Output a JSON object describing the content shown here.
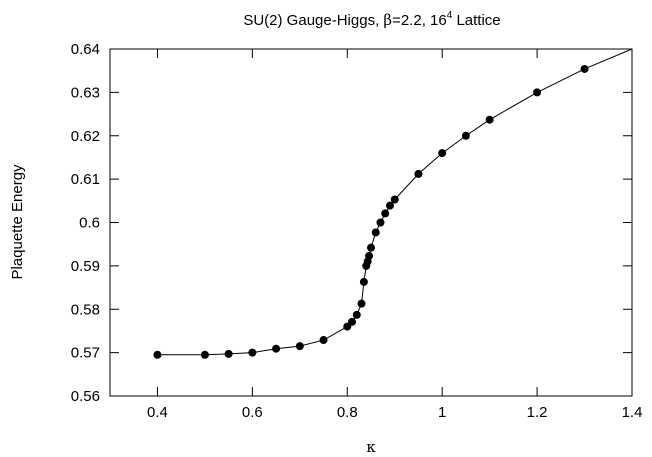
{
  "chart_data": {
    "type": "line",
    "title": {
      "prefix": "SU(2) Gauge-Higgs, ",
      "beta_symbol": "β",
      "beta_value": "=2.2, 16",
      "superscript": "4",
      "suffix": " Lattice"
    },
    "xlabel": "κ",
    "ylabel": "Plaquette Energy",
    "xlim": [
      0.3,
      1.4
    ],
    "ylim": [
      0.56,
      0.64
    ],
    "xticks": [
      "0.4",
      "0.6",
      "0.8",
      "1",
      "1.2",
      "1.4"
    ],
    "yticks": [
      "0.56",
      "0.57",
      "0.58",
      "0.59",
      "0.6",
      "0.61",
      "0.62",
      "0.63",
      "0.64"
    ],
    "grid": false,
    "series": [
      {
        "color": "#000000",
        "marker": "filled-circle",
        "points": [
          {
            "x": 0.4,
            "y": 0.5695
          },
          {
            "x": 0.5,
            "y": 0.5695
          },
          {
            "x": 0.55,
            "y": 0.5697
          },
          {
            "x": 0.6,
            "y": 0.57
          },
          {
            "x": 0.65,
            "y": 0.5709
          },
          {
            "x": 0.7,
            "y": 0.5715
          },
          {
            "x": 0.75,
            "y": 0.5729
          },
          {
            "x": 0.8,
            "y": 0.576
          },
          {
            "x": 0.81,
            "y": 0.5771
          },
          {
            "x": 0.82,
            "y": 0.5787
          },
          {
            "x": 0.83,
            "y": 0.5813
          },
          {
            "x": 0.835,
            "y": 0.5863
          },
          {
            "x": 0.84,
            "y": 0.59
          },
          {
            "x": 0.843,
            "y": 0.591
          },
          {
            "x": 0.846,
            "y": 0.5923
          },
          {
            "x": 0.85,
            "y": 0.5942
          },
          {
            "x": 0.86,
            "y": 0.5977
          },
          {
            "x": 0.87,
            "y": 0.6
          },
          {
            "x": 0.88,
            "y": 0.6021
          },
          {
            "x": 0.89,
            "y": 0.6039
          },
          {
            "x": 0.9,
            "y": 0.6053
          },
          {
            "x": 0.95,
            "y": 0.6112
          },
          {
            "x": 1.0,
            "y": 0.616
          },
          {
            "x": 1.05,
            "y": 0.62
          },
          {
            "x": 1.1,
            "y": 0.6237
          },
          {
            "x": 1.2,
            "y": 0.63
          },
          {
            "x": 1.3,
            "y": 0.6354
          }
        ],
        "line_end": {
          "x": 1.4,
          "y": 0.64
        }
      }
    ]
  }
}
